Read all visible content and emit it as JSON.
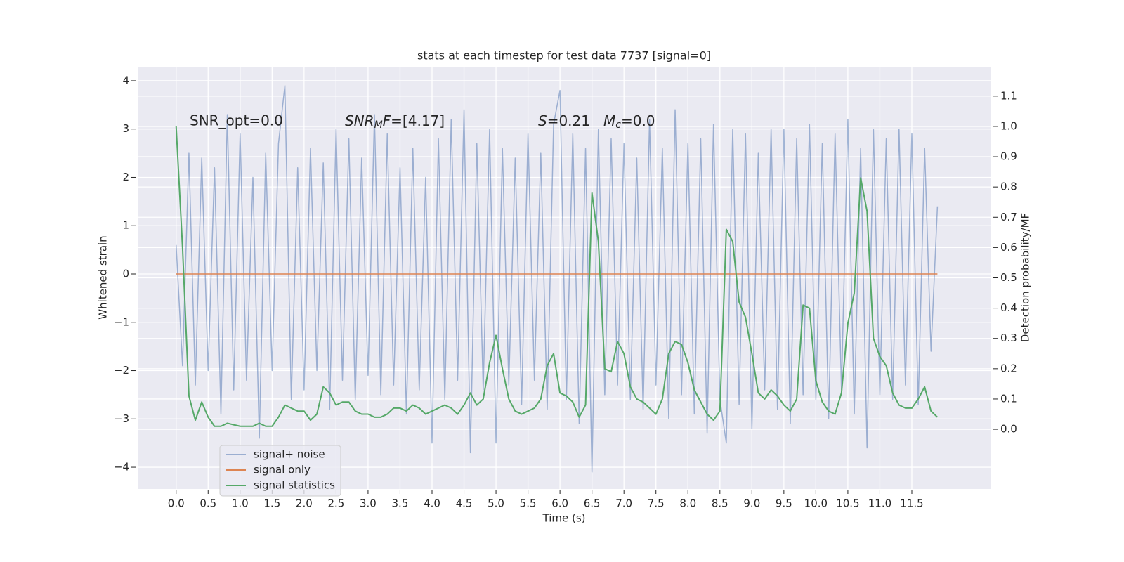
{
  "chart_data": {
    "type": "line",
    "title": "stats at each timestep for test data 7737 [signal=0]",
    "xlabel": "Time (s)",
    "ylabel": "Whitened strain",
    "y2label": "Detection probability/MF",
    "annotations": {
      "snr_opt": "SNR_opt=0.0",
      "snr_mf": [
        "SNR",
        "M",
        "F",
        "=[4.17]"
      ],
      "s": [
        "S",
        "=0.21"
      ],
      "mc": [
        "M",
        "c",
        "=0.0"
      ]
    },
    "grid": true,
    "legend": "lower left",
    "xlim": [
      -0.59,
      12.73
    ],
    "ylim": [
      -4.45,
      4.29
    ],
    "y2lim": [
      -0.197,
      1.197
    ],
    "xticks": [
      {
        "value": 0,
        "label": "0.0"
      },
      {
        "value": 0.5,
        "label": "0.5"
      },
      {
        "value": 1,
        "label": "1.0"
      },
      {
        "value": 1.5,
        "label": "1.5"
      },
      {
        "value": 2,
        "label": "2.0"
      },
      {
        "value": 2.5,
        "label": "2.5"
      },
      {
        "value": 3,
        "label": "3.0"
      },
      {
        "value": 3.5,
        "label": "3.5"
      },
      {
        "value": 4,
        "label": "4.0"
      },
      {
        "value": 4.5,
        "label": "4.5"
      },
      {
        "value": 5,
        "label": "5.0"
      },
      {
        "value": 5.5,
        "label": "5.5"
      },
      {
        "value": 6,
        "label": "6.0"
      },
      {
        "value": 6.5,
        "label": "6.5"
      },
      {
        "value": 7,
        "label": "7.0"
      },
      {
        "value": 7.5,
        "label": "7.5"
      },
      {
        "value": 8,
        "label": "8.0"
      },
      {
        "value": 8.5,
        "label": "8.5"
      },
      {
        "value": 9,
        "label": "9.0"
      },
      {
        "value": 9.5,
        "label": "9.5"
      },
      {
        "value": 10,
        "label": "10.0"
      },
      {
        "value": 10.5,
        "label": "10.5"
      },
      {
        "value": 11,
        "label": "11.0"
      },
      {
        "value": 11.5,
        "label": "11.5"
      }
    ],
    "yticks": [
      {
        "value": -4,
        "label": "−4"
      },
      {
        "value": -3,
        "label": "−3"
      },
      {
        "value": -2,
        "label": "−2"
      },
      {
        "value": -1,
        "label": "−1"
      },
      0,
      1,
      2,
      3,
      4
    ],
    "y2ticks": [
      {
        "value": 0,
        "label": "0.0"
      },
      {
        "value": 0.1,
        "label": "0.1"
      },
      {
        "value": 0.2,
        "label": "0.2"
      },
      {
        "value": 0.3,
        "label": "0.3"
      },
      {
        "value": 0.4,
        "label": "0.4"
      },
      {
        "value": 0.5,
        "label": "0.5"
      },
      {
        "value": 0.6,
        "label": "0.6"
      },
      {
        "value": 0.7,
        "label": "0.7"
      },
      {
        "value": 0.8,
        "label": "0.8"
      },
      {
        "value": 0.9,
        "label": "0.9"
      },
      {
        "value": 1,
        "label": "1.0"
      },
      {
        "value": 1.1,
        "label": "1.1"
      }
    ],
    "x": [
      0,
      0.1,
      0.2,
      0.3,
      0.4,
      0.5,
      0.6,
      0.7,
      0.8,
      0.9,
      1,
      1.1,
      1.2,
      1.3,
      1.4,
      1.5,
      1.6,
      1.7,
      1.8,
      1.9,
      2,
      2.1,
      2.2,
      2.3,
      2.4,
      2.5,
      2.6,
      2.7,
      2.8,
      2.9,
      3,
      3.1,
      3.2,
      3.3,
      3.4,
      3.5,
      3.6,
      3.7,
      3.8,
      3.9,
      4,
      4.1,
      4.2,
      4.3,
      4.4,
      4.5,
      4.6,
      4.7,
      4.8,
      4.9,
      5,
      5.1,
      5.2,
      5.3,
      5.4,
      5.5,
      5.6,
      5.7,
      5.8,
      5.9,
      6,
      6.1,
      6.2,
      6.3,
      6.4,
      6.5,
      6.6,
      6.7,
      6.8,
      6.9,
      7,
      7.1,
      7.2,
      7.3,
      7.4,
      7.5,
      7.6,
      7.7,
      7.8,
      7.9,
      8,
      8.1,
      8.2,
      8.3,
      8.4,
      8.5,
      8.6,
      8.7,
      8.8,
      8.9,
      9,
      9.1,
      9.2,
      9.3,
      9.4,
      9.5,
      9.6,
      9.7,
      9.8,
      9.9,
      10,
      10.1,
      10.2,
      10.3,
      10.4,
      10.5,
      10.6,
      10.7,
      10.8,
      10.9,
      11,
      11.1,
      11.2,
      11.3,
      11.4,
      11.5,
      11.6,
      11.7,
      11.8,
      11.9
    ],
    "series": [
      {
        "name": "signal+ noise",
        "color": "#4c72b0",
        "alpha": 0.5,
        "values": [
          0.6,
          -1.9,
          2.5,
          -2.3,
          2.4,
          -2.0,
          2.2,
          -2.9,
          3.3,
          -2.4,
          2.9,
          -2.2,
          2.0,
          -3.4,
          2.5,
          -2.0,
          2.7,
          3.9,
          -2.6,
          2.2,
          -2.4,
          2.6,
          -2.0,
          2.3,
          -2.8,
          3.0,
          -2.2,
          2.8,
          -2.6,
          2.4,
          -2.1,
          3.3,
          -2.5,
          2.9,
          -2.3,
          2.2,
          -2.9,
          2.6,
          -2.4,
          2.0,
          -3.5,
          2.8,
          -2.6,
          3.2,
          -2.2,
          3.4,
          -3.7,
          2.7,
          -2.4,
          3.0,
          -3.5,
          2.6,
          -2.3,
          2.4,
          -2.7,
          2.9,
          -2.2,
          2.5,
          -2.8,
          3.1,
          3.8,
          -2.6,
          2.9,
          -3.1,
          2.6,
          -4.1,
          3.0,
          -2.5,
          2.8,
          -2.3,
          2.7,
          -2.6,
          2.4,
          -2.8,
          3.2,
          -2.3,
          2.6,
          -3.0,
          3.4,
          -2.5,
          2.7,
          -2.9,
          2.8,
          -3.3,
          3.1,
          -2.6,
          -3.5,
          3.0,
          -2.7,
          2.9,
          -3.2,
          2.5,
          -2.4,
          3.0,
          -2.8,
          3.0,
          -3.1,
          2.8,
          -2.5,
          3.1,
          -2.6,
          2.7,
          -3.0,
          2.9,
          -2.4,
          3.2,
          -2.9,
          2.6,
          -3.6,
          3.0,
          -2.5,
          2.8,
          -2.6,
          3.0,
          -2.3,
          2.9,
          -2.7,
          2.6,
          -1.6,
          1.4
        ]
      },
      {
        "name": "signal only",
        "color": "#dd8452",
        "alpha": 1,
        "values": [
          0,
          0,
          0,
          0,
          0,
          0,
          0,
          0,
          0,
          0,
          0,
          0,
          0,
          0,
          0,
          0,
          0,
          0,
          0,
          0,
          0,
          0,
          0,
          0,
          0,
          0,
          0,
          0,
          0,
          0,
          0,
          0,
          0,
          0,
          0,
          0,
          0,
          0,
          0,
          0,
          0,
          0,
          0,
          0,
          0,
          0,
          0,
          0,
          0,
          0,
          0,
          0,
          0,
          0,
          0,
          0,
          0,
          0,
          0,
          0,
          0,
          0,
          0,
          0,
          0,
          0,
          0,
          0,
          0,
          0,
          0,
          0,
          0,
          0,
          0,
          0,
          0,
          0,
          0,
          0,
          0,
          0,
          0,
          0,
          0,
          0,
          0,
          0,
          0,
          0,
          0,
          0,
          0,
          0,
          0,
          0,
          0,
          0,
          0,
          0,
          0,
          0,
          0,
          0,
          0,
          0,
          0,
          0,
          0,
          0,
          0,
          0,
          0,
          0,
          0,
          0,
          0,
          0,
          0,
          0
        ]
      },
      {
        "name": "signal statistics",
        "color": "#55a868",
        "alpha": 1,
        "axis": "y2",
        "values": [
          1.0,
          0.6,
          0.11,
          0.03,
          0.09,
          0.04,
          0.01,
          0.01,
          0.02,
          0.015,
          0.01,
          0.01,
          0.01,
          0.02,
          0.01,
          0.01,
          0.04,
          0.08,
          0.07,
          0.06,
          0.06,
          0.03,
          0.05,
          0.14,
          0.12,
          0.08,
          0.09,
          0.09,
          0.06,
          0.05,
          0.05,
          0.04,
          0.04,
          0.05,
          0.07,
          0.07,
          0.06,
          0.08,
          0.07,
          0.05,
          0.06,
          0.07,
          0.08,
          0.07,
          0.05,
          0.08,
          0.12,
          0.08,
          0.1,
          0.22,
          0.31,
          0.2,
          0.1,
          0.06,
          0.05,
          0.06,
          0.07,
          0.1,
          0.21,
          0.25,
          0.12,
          0.11,
          0.09,
          0.04,
          0.08,
          0.78,
          0.62,
          0.2,
          0.19,
          0.29,
          0.25,
          0.14,
          0.1,
          0.09,
          0.07,
          0.05,
          0.1,
          0.25,
          0.29,
          0.28,
          0.22,
          0.13,
          0.09,
          0.05,
          0.03,
          0.06,
          0.66,
          0.62,
          0.42,
          0.37,
          0.25,
          0.12,
          0.1,
          0.13,
          0.11,
          0.08,
          0.06,
          0.1,
          0.41,
          0.4,
          0.16,
          0.09,
          0.06,
          0.05,
          0.12,
          0.35,
          0.45,
          0.83,
          0.72,
          0.3,
          0.24,
          0.21,
          0.12,
          0.08,
          0.07,
          0.07,
          0.1,
          0.14,
          0.06,
          0.04
        ]
      }
    ]
  }
}
